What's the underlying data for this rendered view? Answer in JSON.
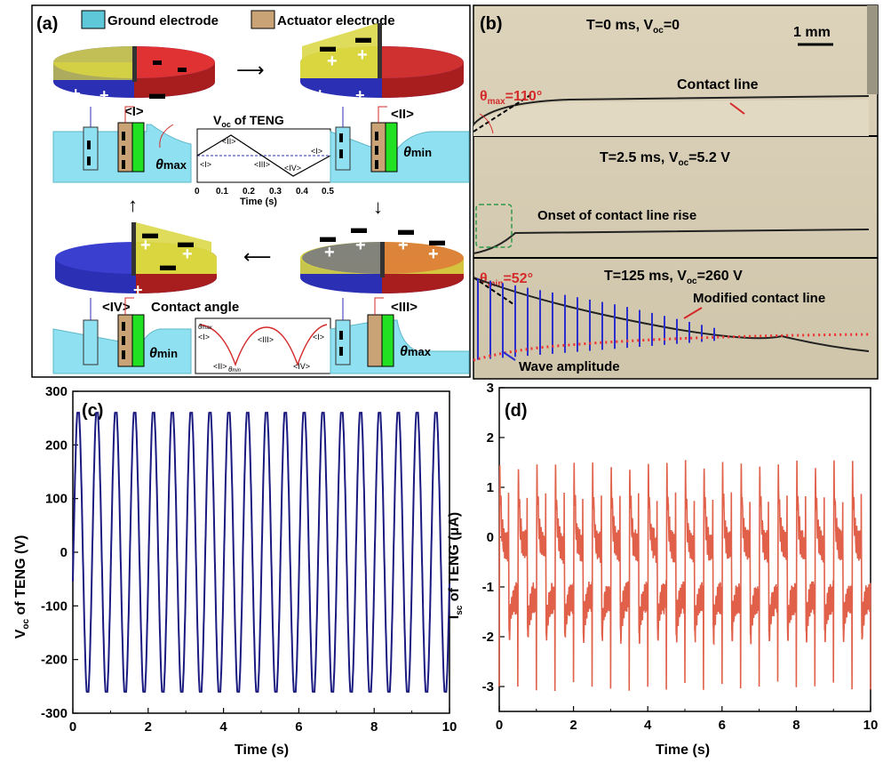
{
  "panel_a": {
    "label": "(a)",
    "legend_ground": "Ground electrode",
    "legend_actuator": "Actuator electrode",
    "legend_ground_color": "#5ec8d8",
    "legend_actuator_color": "#c9a276",
    "state_I": "<I>",
    "state_II": "<II>",
    "state_III": "<III>",
    "state_IV": "<IV>",
    "theta": "θ",
    "sub_max": "max",
    "sub_min": "min",
    "contact_angle_label": "Contact angle",
    "inset_voc": {
      "title_main": "V",
      "title_sub": "oc",
      "title_rest": " of TENG",
      "xlabel": "Time (s)",
      "ticks": [
        "0",
        "0.1",
        "0.2",
        "0.3",
        "0.4",
        "0.5"
      ],
      "labels": [
        "<I>",
        "<II>",
        "<III>",
        "<IV>",
        "<I>"
      ]
    },
    "inset_angle": {
      "labels": [
        "<I>",
        "<II>",
        "<III>",
        "<IV>",
        "<I>"
      ]
    },
    "colors": {
      "blue": "#2b2fb3",
      "red": "#d42a2a",
      "yellow": "#d9d640",
      "green": "#22e022",
      "water": "#8fe0f0"
    }
  },
  "panel_b": {
    "label": "(b)",
    "scale_bar": "1 mm",
    "frame1": {
      "title": "T=0 ms, V",
      "title_sub": "oc",
      "title_end": "=0",
      "theta_label_main": "θ",
      "theta_label_sub": "max",
      "theta_label_end": "=110°",
      "note": "Contact line"
    },
    "frame2": {
      "title": "T=2.5 ms, V",
      "title_sub": "oc",
      "title_end": "=5.2 V",
      "note": "Onset of contact line rise"
    },
    "frame3": {
      "title": "T=125 ms, V",
      "title_sub": "oc",
      "title_end": "=260 V",
      "theta_label_main": "θ",
      "theta_label_sub": "min",
      "theta_label_end": "=52°",
      "note": "Modified contact line",
      "note2": "Wave amplitude"
    }
  },
  "panel_c": {
    "label": "(c)",
    "ylabel_main": "V",
    "ylabel_sub": "oc",
    "ylabel_rest": " of TENG (V)",
    "xlabel": "Time (s)",
    "color": "#1a1a80"
  },
  "panel_d": {
    "label": "(d)",
    "ylabel_main": "I",
    "ylabel_sub": "sc",
    "ylabel_rest": " of TENG (μA)",
    "xlabel": "Time (s)",
    "color": "#e0604a"
  },
  "chart_data": [
    {
      "type": "line",
      "title": "",
      "xlabel": "Time (s)",
      "ylabel": "Voc of TENG (V)",
      "xlim": [
        0,
        10
      ],
      "ylim": [
        -300,
        300
      ],
      "xticks": [
        0,
        2,
        4,
        6,
        8,
        10
      ],
      "yticks": [
        -300,
        -200,
        -100,
        0,
        100,
        200,
        300
      ],
      "series": [
        {
          "frequency_hz": 2.0,
          "amplitude_v": 260,
          "x_range": [
            0,
            10
          ]
        }
      ]
    },
    {
      "type": "line",
      "title": "",
      "xlabel": "Time (s)",
      "ylabel": "Isc of TENG (μA)",
      "xlim": [
        0,
        10
      ],
      "ylim": [
        -3.5,
        3
      ],
      "xticks": [
        0,
        2,
        4,
        6,
        8,
        10
      ],
      "yticks": [
        -3,
        -2,
        -1,
        0,
        1,
        2,
        3
      ],
      "series": [
        {
          "frequency_hz": 2.0,
          "peak_max_ua": 2.5,
          "peak_min_ua": -3.4,
          "x_range": [
            0,
            10
          ]
        }
      ]
    }
  ]
}
